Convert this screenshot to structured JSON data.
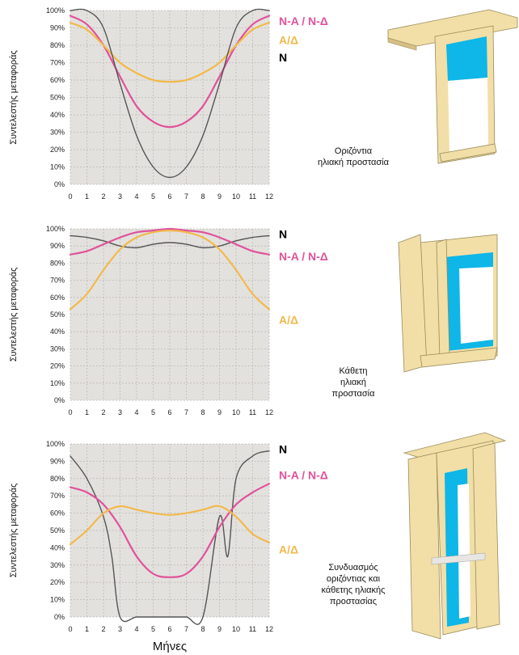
{
  "x_axis_label": "Μήνες",
  "colors": {
    "N": "#555555",
    "NA_ND": "#e0529a",
    "AD": "#f2b94b",
    "plot_bg": "#e3e1de",
    "grid": "#bdbab6",
    "wood": "#f1dfa7",
    "wood_shade": "#d7c085",
    "glass": "#0fb6e8"
  },
  "chart_data": [
    {
      "type": "line",
      "title": "",
      "ylabel": "Συντελεστής μεταφοράς",
      "xlabel": "",
      "xlim": [
        0,
        12
      ],
      "ylim": [
        0,
        100
      ],
      "xticks": [
        "0",
        "1",
        "2",
        "3",
        "4",
        "5",
        "6",
        "7",
        "8",
        "9",
        "10",
        "11",
        "12"
      ],
      "yticks": [
        "0%",
        "10%",
        "20%",
        "30%",
        "40%",
        "50%",
        "60%",
        "70%",
        "80%",
        "90%",
        "100%"
      ],
      "grid": true,
      "caption": [
        "Οριζόντια",
        "ηλιακή προστασία"
      ],
      "shading_icon": "horizontal-shading-icon",
      "series": [
        {
          "name": "N-A / N-Δ",
          "key": "NA_ND",
          "x": [
            0,
            1,
            2,
            3,
            4,
            5,
            6,
            7,
            8,
            9,
            10,
            11,
            12
          ],
          "y": [
            97,
            92,
            80,
            62,
            45,
            36,
            33,
            36,
            45,
            62,
            80,
            92,
            97
          ]
        },
        {
          "name": "A/Δ",
          "key": "AD",
          "x": [
            0,
            1,
            2,
            3,
            4,
            5,
            6,
            7,
            8,
            9,
            10,
            11,
            12
          ],
          "y": [
            93,
            89,
            80,
            70,
            64,
            60,
            59,
            60,
            64,
            70,
            80,
            89,
            93
          ]
        },
        {
          "name": "N",
          "key": "N",
          "x": [
            0,
            1,
            2,
            3,
            4,
            5,
            6,
            7,
            8,
            9,
            10,
            11,
            12
          ],
          "y": [
            100,
            100,
            90,
            58,
            28,
            10,
            4,
            10,
            28,
            58,
            90,
            100,
            100
          ]
        }
      ],
      "legend": [
        {
          "name": "N-A / N-Δ",
          "key": "NA_ND",
          "value_at": 94
        },
        {
          "name": "A/Δ",
          "key": "AD",
          "value_at": 83
        },
        {
          "name": "N",
          "key": "N",
          "value_at": 73
        }
      ]
    },
    {
      "type": "line",
      "title": "",
      "ylabel": "Συντελεστής μεταφοράς",
      "xlabel": "",
      "xlim": [
        0,
        12
      ],
      "ylim": [
        0,
        100
      ],
      "xticks": [
        "0",
        "1",
        "2",
        "3",
        "4",
        "5",
        "6",
        "7",
        "8",
        "9",
        "10",
        "11",
        "12"
      ],
      "yticks": [
        "0%",
        "10%",
        "20%",
        "30%",
        "40%",
        "50%",
        "60%",
        "70%",
        "80%",
        "90%",
        "100%"
      ],
      "grid": true,
      "caption": [
        "Κάθετη",
        "ηλιακή",
        "προστασία"
      ],
      "shading_icon": "vertical-shading-icon",
      "series": [
        {
          "name": "N",
          "key": "N",
          "x": [
            0,
            1,
            2,
            3,
            4,
            5,
            6,
            7,
            8,
            9,
            10,
            11,
            12
          ],
          "y": [
            96,
            95,
            93,
            90,
            89,
            91,
            92,
            91,
            89,
            90,
            93,
            95,
            96
          ]
        },
        {
          "name": "N-A / N-Δ",
          "key": "NA_ND",
          "x": [
            0,
            1,
            2,
            3,
            4,
            5,
            6,
            7,
            8,
            9,
            10,
            11,
            12
          ],
          "y": [
            85,
            87,
            91,
            95,
            98,
            99,
            100,
            99,
            98,
            95,
            91,
            87,
            85
          ]
        },
        {
          "name": "A/Δ",
          "key": "AD",
          "x": [
            0,
            1,
            2,
            3,
            4,
            5,
            6,
            7,
            8,
            9,
            10,
            11,
            12
          ],
          "y": [
            53,
            62,
            76,
            88,
            95,
            98,
            99,
            98,
            95,
            88,
            76,
            62,
            53
          ]
        }
      ],
      "legend": [
        {
          "name": "N",
          "key": "N",
          "value_at": 97
        },
        {
          "name": "N-A / N-Δ",
          "key": "NA_ND",
          "value_at": 84
        },
        {
          "name": "A/Δ",
          "key": "AD",
          "value_at": 47
        }
      ]
    },
    {
      "type": "line",
      "title": "",
      "ylabel": "Συντελεστής μεταφοράς",
      "xlabel": "",
      "xlim": [
        0,
        12
      ],
      "ylim": [
        0,
        100
      ],
      "xticks": [
        "0",
        "1",
        "2",
        "3",
        "4",
        "5",
        "6",
        "7",
        "8",
        "9",
        "10",
        "11",
        "12"
      ],
      "yticks": [
        "0%",
        "10%",
        "20%",
        "30%",
        "40%",
        "50%",
        "60%",
        "70%",
        "80%",
        "90%",
        "100%"
      ],
      "grid": true,
      "caption": [
        "Συνδυασμός",
        "οριζόντιας και",
        "κάθετης ηλιακής",
        "προστασίας"
      ],
      "shading_icon": "combined-shading-icon",
      "series": [
        {
          "name": "N",
          "key": "N",
          "x": [
            0,
            1,
            2,
            2.5,
            3,
            4,
            5,
            6,
            7,
            8,
            9,
            9.5,
            10,
            11,
            12
          ],
          "y": [
            93,
            80,
            58,
            35,
            0,
            0,
            0,
            0,
            0,
            0,
            58,
            35,
            80,
            93,
            96
          ]
        },
        {
          "name": "N-A / N-Δ",
          "key": "NA_ND",
          "x": [
            0,
            1,
            2,
            3,
            4,
            5,
            6,
            7,
            8,
            9,
            10,
            11,
            12
          ],
          "y": [
            75,
            72,
            65,
            52,
            35,
            25,
            23,
            25,
            35,
            52,
            65,
            72,
            77
          ]
        },
        {
          "name": "A/Δ",
          "key": "AD",
          "x": [
            0,
            1,
            2,
            3,
            4,
            5,
            6,
            7,
            8,
            9,
            10,
            11,
            12
          ],
          "y": [
            42,
            50,
            60,
            64,
            62,
            60,
            59,
            60,
            62,
            64,
            58,
            48,
            43
          ]
        }
      ],
      "legend": [
        {
          "name": "N",
          "key": "N",
          "value_at": 97
        },
        {
          "name": "N-A / N-Δ",
          "key": "NA_ND",
          "value_at": 82
        },
        {
          "name": "A/Δ",
          "key": "AD",
          "value_at": 39
        }
      ]
    }
  ]
}
